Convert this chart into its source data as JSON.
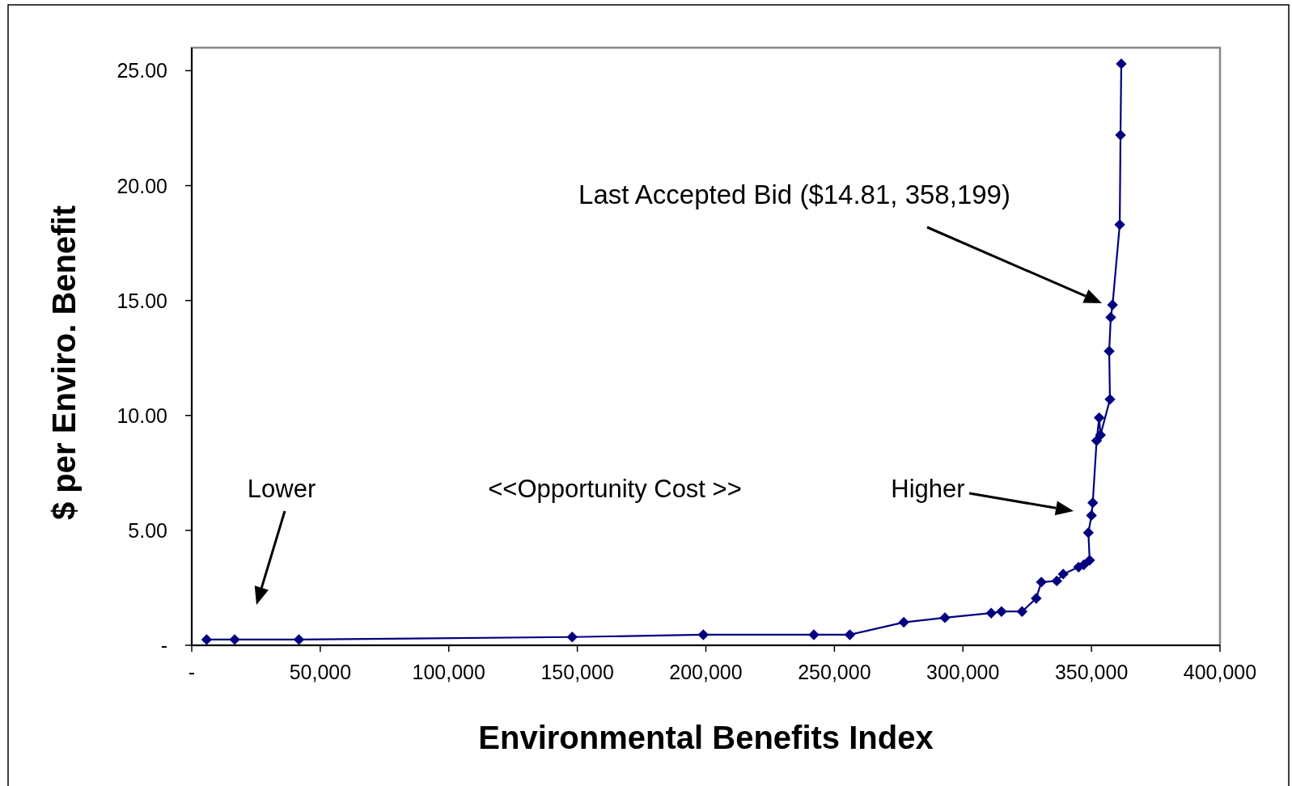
{
  "chart_data": {
    "type": "line",
    "xlabel": "Environmental Benefits Index",
    "ylabel": "$ per Enviro. Benefit",
    "x": [
      5800,
      16700,
      41700,
      148000,
      199000,
      242000,
      256000,
      277000,
      293000,
      311000,
      315000,
      323000,
      328500,
      330500,
      336500,
      339000,
      345000,
      347000,
      349300,
      348800,
      350000,
      350500,
      352000,
      353000,
      353500,
      357200,
      356900,
      357500,
      358199,
      361000,
      361300,
      361600
    ],
    "series": [
      {
        "color": "#000080",
        "values": [
          0.25,
          0.25,
          0.25,
          0.36,
          0.46,
          0.46,
          0.46,
          1.0,
          1.2,
          1.4,
          1.47,
          1.47,
          2.04,
          2.75,
          2.8,
          3.1,
          3.4,
          3.5,
          3.7,
          4.9,
          5.65,
          6.2,
          8.9,
          9.9,
          9.15,
          10.7,
          12.8,
          14.27,
          14.81,
          18.3,
          22.2,
          25.3
        ]
      }
    ],
    "xlim": [
      0,
      400000
    ],
    "ylim": [
      0,
      26
    ],
    "xticks": [
      {
        "value": 0,
        "label": "-"
      },
      {
        "value": 50000,
        "label": "50,000"
      },
      {
        "value": 100000,
        "label": "100,000"
      },
      {
        "value": 150000,
        "label": "150,000"
      },
      {
        "value": 200000,
        "label": "200,000"
      },
      {
        "value": 250000,
        "label": "250,000"
      },
      {
        "value": 300000,
        "label": "300,000"
      },
      {
        "value": 350000,
        "label": "350,000"
      },
      {
        "value": 400000,
        "label": "400,000"
      }
    ],
    "yticks": [
      {
        "value": 0,
        "label": "-"
      },
      {
        "value": 5,
        "label": "5.00"
      },
      {
        "value": 10,
        "label": "10.00"
      },
      {
        "value": 15,
        "label": "15.00"
      },
      {
        "value": 20,
        "label": "20.00"
      },
      {
        "value": 25,
        "label": "25.00"
      }
    ],
    "marker": "diamond",
    "line_style": "solid",
    "annotations": [
      "Last Accepted Bid ($14.81, 358,199)",
      "Lower",
      "<<Opportunity Cost >>",
      "Higher"
    ]
  }
}
